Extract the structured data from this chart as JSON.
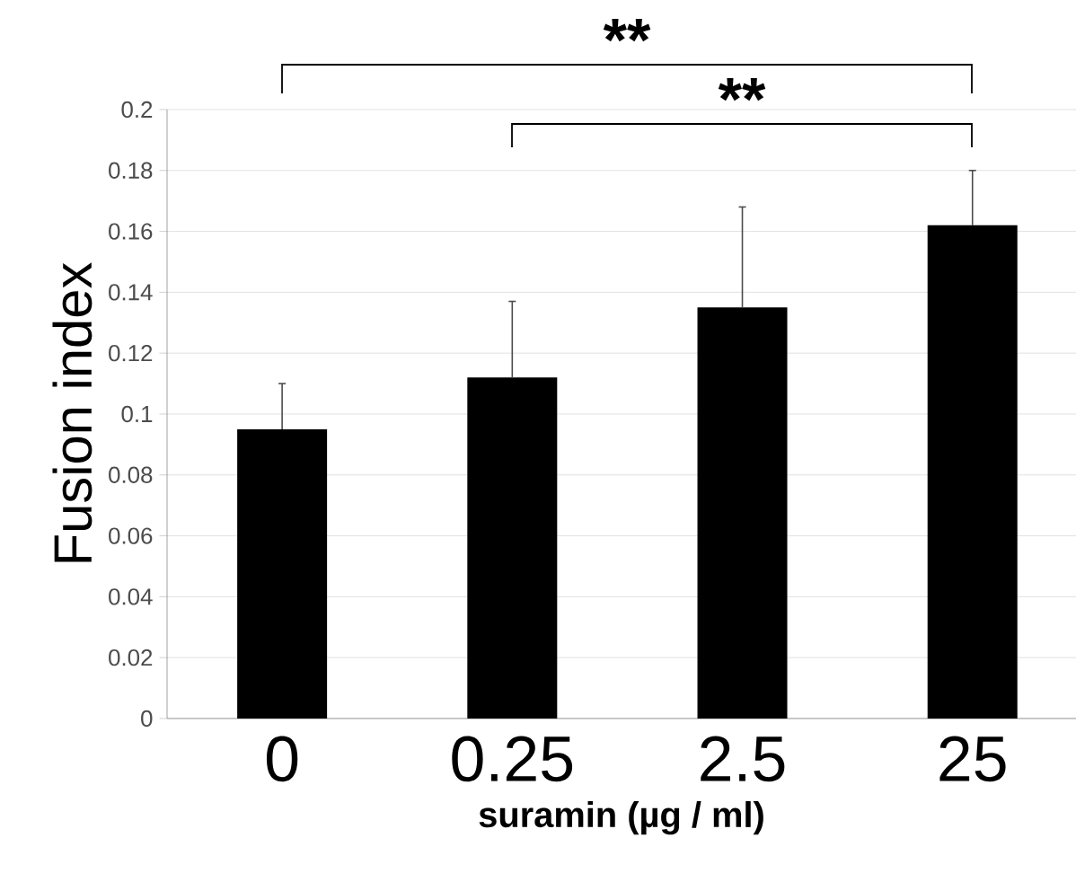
{
  "chart_data": {
    "type": "bar",
    "xlabel": "suramin (µg / ml)",
    "ylabel": "Fusion index",
    "categories": [
      "0",
      "0.25",
      "2.5",
      "25"
    ],
    "values": [
      0.095,
      0.112,
      0.135,
      0.162
    ],
    "errors": [
      [
        0.095,
        0.11
      ],
      [
        0.112,
        0.137
      ],
      [
        0.135,
        0.168
      ],
      [
        0.162,
        0.18
      ]
    ],
    "color": "#000000",
    "ylim": [
      0,
      0.2
    ],
    "yticks": [
      0,
      0.02,
      0.04,
      0.06,
      0.08,
      0.1,
      0.12,
      0.14,
      0.16,
      0.18,
      0.2
    ],
    "grid": "y",
    "annotations": [
      "**",
      "**"
    ]
  }
}
